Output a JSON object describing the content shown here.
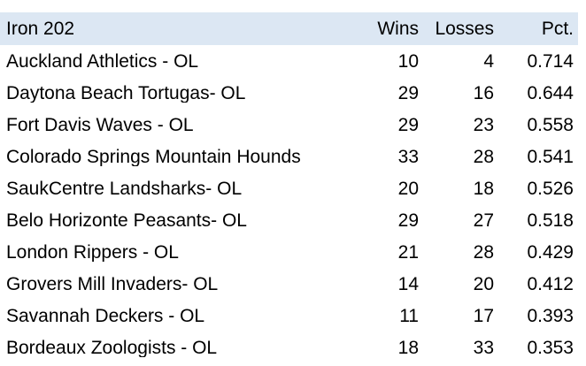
{
  "colors": {
    "header-bg": "#dce7f3",
    "text-color": "#000000"
  },
  "table": {
    "title": "Iron 202",
    "columns": [
      "Wins",
      "Losses",
      "Pct."
    ],
    "rows": [
      {
        "team": "Auckland Athletics - OL",
        "wins": "10",
        "losses": "4",
        "pct": "0.714"
      },
      {
        "team": "Daytona Beach Tortugas- OL",
        "wins": "29",
        "losses": "16",
        "pct": "0.644"
      },
      {
        "team": "Fort Davis Waves - OL",
        "wins": "29",
        "losses": "23",
        "pct": "0.558"
      },
      {
        "team": "Colorado Springs Mountain Hounds",
        "wins": "33",
        "losses": "28",
        "pct": "0.541"
      },
      {
        "team": "SaukCentre Landsharks- OL",
        "wins": "20",
        "losses": "18",
        "pct": "0.526"
      },
      {
        "team": "Belo Horizonte Peasants- OL",
        "wins": "29",
        "losses": "27",
        "pct": "0.518"
      },
      {
        "team": "London Rippers - OL",
        "wins": "21",
        "losses": "28",
        "pct": "0.429"
      },
      {
        "team": "Grovers Mill Invaders- OL",
        "wins": "14",
        "losses": "20",
        "pct": "0.412"
      },
      {
        "team": "Savannah Deckers - OL",
        "wins": "11",
        "losses": "17",
        "pct": "0.393"
      },
      {
        "team": "Bordeaux Zoologists - OL",
        "wins": "18",
        "losses": "33",
        "pct": "0.353"
      }
    ]
  }
}
